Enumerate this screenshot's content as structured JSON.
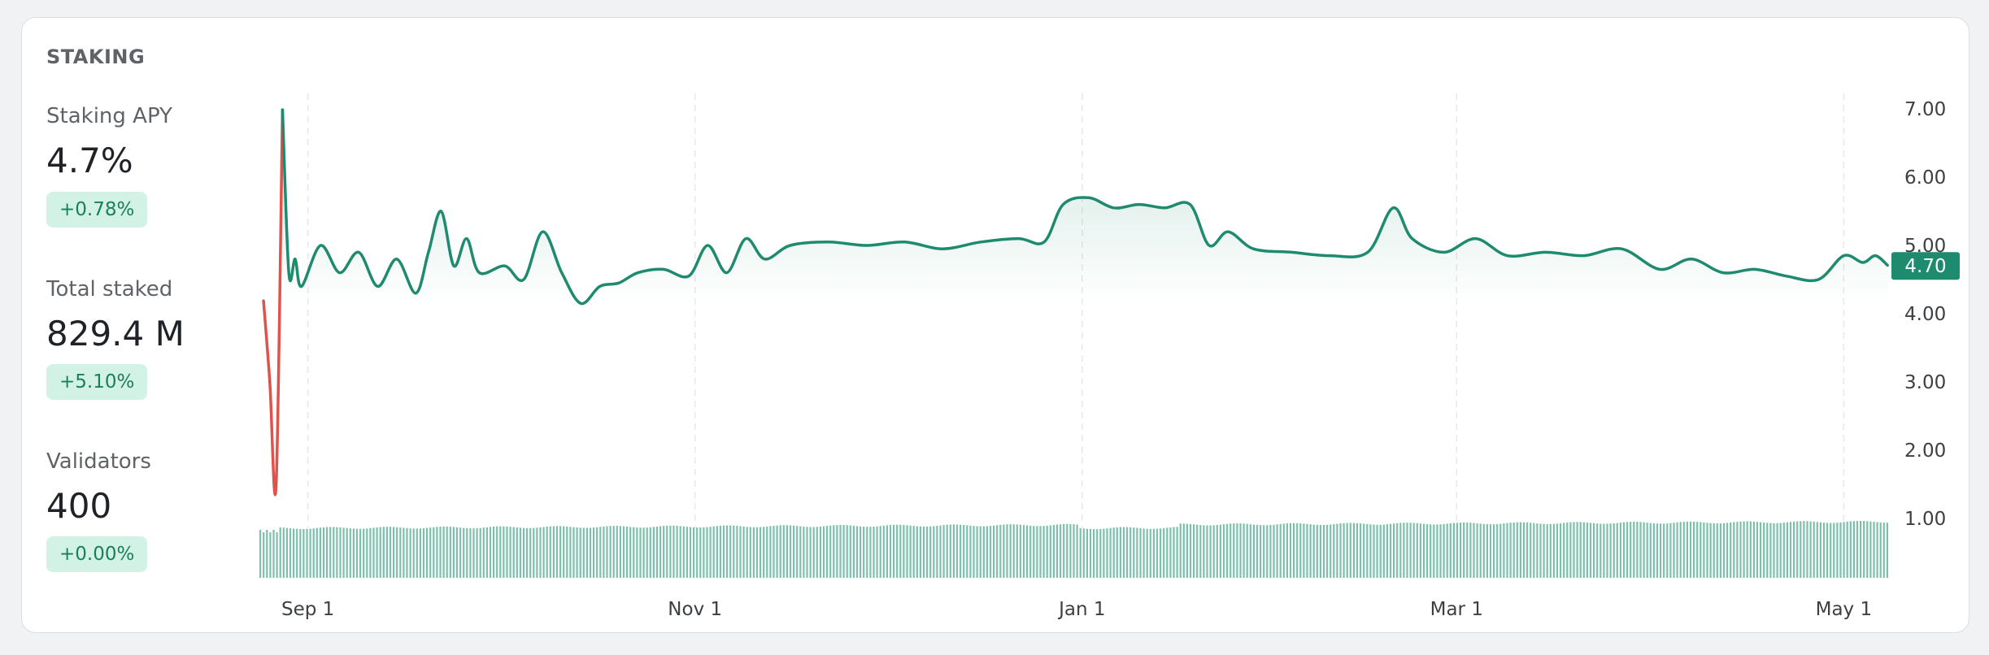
{
  "panel": {
    "title": "STAKING",
    "metrics": [
      {
        "label": "Staking APY",
        "value": "4.7%",
        "change": "+0.78%"
      },
      {
        "label": "Total staked",
        "value": "829.4 M",
        "change": "+5.10%"
      },
      {
        "label": "Validators",
        "value": "400",
        "change": "+0.00%"
      }
    ]
  },
  "colors": {
    "line_up": "#1e8a6e",
    "line_down": "#e0524c",
    "volume": "#7cbfaa",
    "current_label_bg": "#1e8a6e"
  },
  "chart_data": {
    "type": "line",
    "x_ticks": [
      "Sep 1",
      "Nov 1",
      "Jan 1",
      "Mar 1",
      "May 1"
    ],
    "y_ticks": [
      "1.00",
      "2.00",
      "3.00",
      "4.00",
      "5.00",
      "6.00",
      "7.00"
    ],
    "ylim": [
      0.5,
      7.2
    ],
    "current_value": "4.70",
    "series": [
      {
        "values_by_date": [
          [
            "Aug 25",
            4.2
          ],
          [
            "Aug 26",
            3.0
          ],
          [
            "Aug 27",
            1.5
          ],
          [
            "Aug 28",
            7.0
          ],
          [
            "Aug 29",
            4.6
          ],
          [
            "Aug 30",
            4.8
          ],
          [
            "Aug 31",
            4.4
          ],
          [
            "Sep 3",
            5.0
          ],
          [
            "Sep 6",
            4.6
          ],
          [
            "Sep 9",
            4.9
          ],
          [
            "Sep 12",
            4.4
          ],
          [
            "Sep 15",
            4.8
          ],
          [
            "Sep 18",
            4.3
          ],
          [
            "Sep 20",
            4.9
          ],
          [
            "Sep 22",
            5.5
          ],
          [
            "Sep 24",
            4.7
          ],
          [
            "Sep 26",
            5.1
          ],
          [
            "Sep 28",
            4.6
          ],
          [
            "Oct 2",
            4.7
          ],
          [
            "Oct 5",
            4.5
          ],
          [
            "Oct 8",
            5.2
          ],
          [
            "Oct 11",
            4.6
          ],
          [
            "Oct 14",
            4.15
          ],
          [
            "Oct 17",
            4.4
          ],
          [
            "Oct 20",
            4.45
          ],
          [
            "Oct 23",
            4.6
          ],
          [
            "Oct 27",
            4.65
          ],
          [
            "Oct 31",
            4.55
          ],
          [
            "Nov 3",
            5.0
          ],
          [
            "Nov 6",
            4.6
          ],
          [
            "Nov 9",
            5.1
          ],
          [
            "Nov 12",
            4.8
          ],
          [
            "Nov 16",
            5.0
          ],
          [
            "Nov 22",
            5.05
          ],
          [
            "Nov 28",
            5.0
          ],
          [
            "Dec 4",
            5.05
          ],
          [
            "Dec 10",
            4.95
          ],
          [
            "Dec 16",
            5.05
          ],
          [
            "Dec 22",
            5.1
          ],
          [
            "Dec 26",
            5.05
          ],
          [
            "Dec 29",
            5.6
          ],
          [
            "Jan 2",
            5.7
          ],
          [
            "Jan 6",
            5.55
          ],
          [
            "Jan 10",
            5.6
          ],
          [
            "Jan 14",
            5.55
          ],
          [
            "Jan 18",
            5.6
          ],
          [
            "Jan 21",
            5.0
          ],
          [
            "Jan 24",
            5.2
          ],
          [
            "Jan 28",
            4.95
          ],
          [
            "Feb 3",
            4.9
          ],
          [
            "Feb 9",
            4.85
          ],
          [
            "Feb 15",
            4.9
          ],
          [
            "Feb 19",
            5.55
          ],
          [
            "Feb 22",
            5.1
          ],
          [
            "Feb 27",
            4.9
          ],
          [
            "Mar 4",
            5.1
          ],
          [
            "Mar 9",
            4.85
          ],
          [
            "Mar 15",
            4.9
          ],
          [
            "Mar 21",
            4.85
          ],
          [
            "Mar 27",
            4.95
          ],
          [
            "Apr 2",
            4.65
          ],
          [
            "Apr 7",
            4.8
          ],
          [
            "Apr 12",
            4.6
          ],
          [
            "Apr 17",
            4.65
          ],
          [
            "Apr 22",
            4.55
          ],
          [
            "Apr 27",
            4.5
          ],
          [
            "May 1",
            4.85
          ],
          [
            "May 4",
            4.75
          ],
          [
            "May 6",
            4.85
          ],
          [
            "May 8",
            4.7
          ]
        ]
      }
    ]
  }
}
